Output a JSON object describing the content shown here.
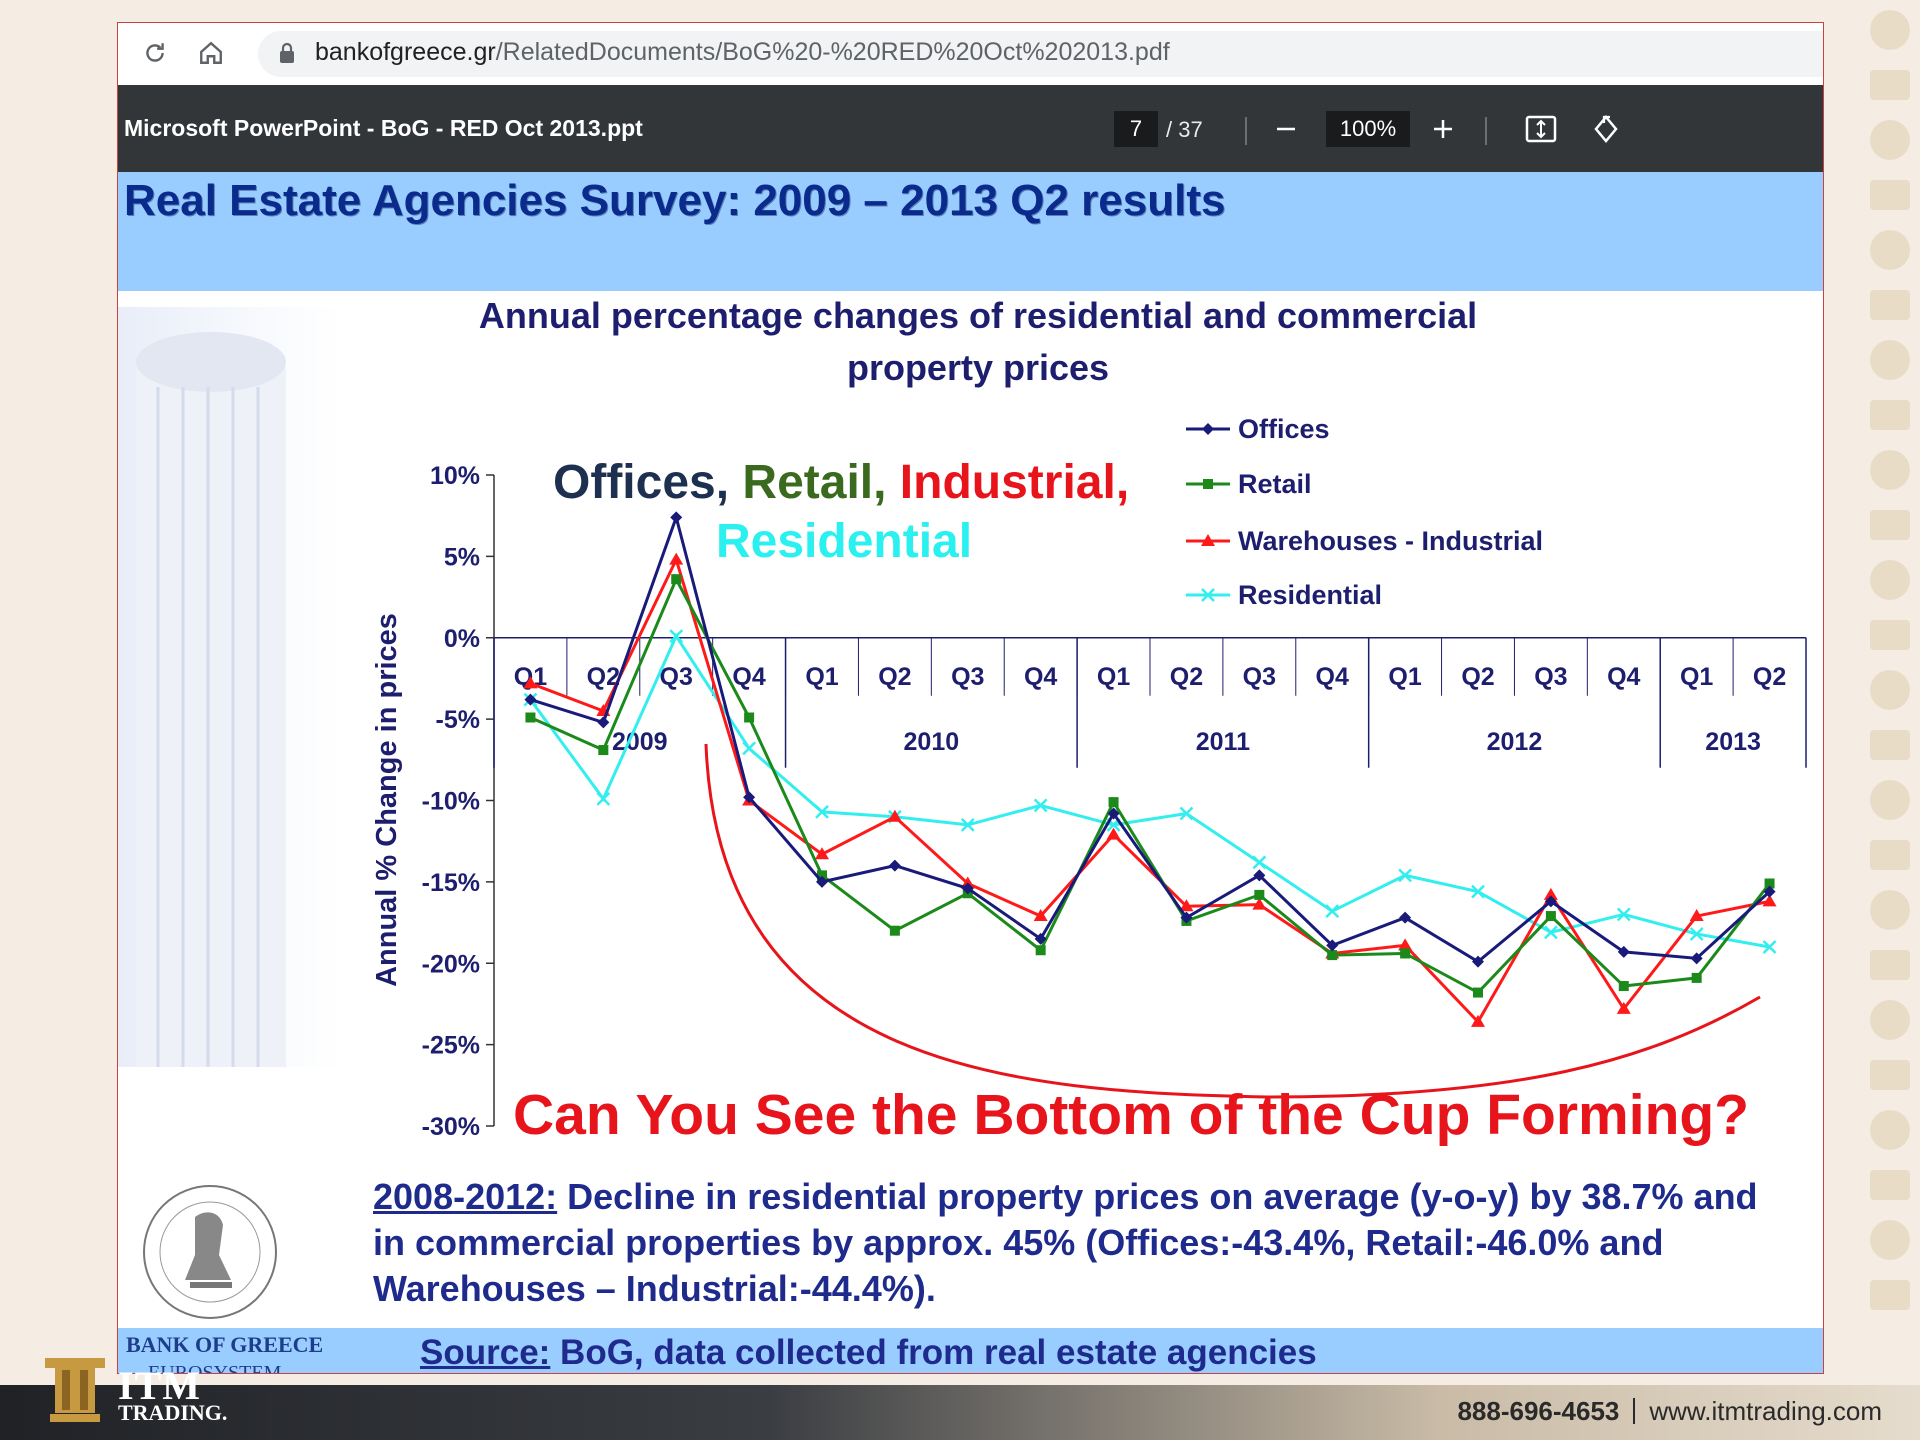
{
  "browser": {
    "url_domain": "bankofgreece.gr",
    "url_path": "/RelatedDocuments/BoG%20-%20RED%20Oct%202013.pdf"
  },
  "pdf_toolbar": {
    "doc_title": "Microsoft PowerPoint - BoG - RED Oct 2013.ppt",
    "page_current": "7",
    "page_total": "/ 37",
    "zoom": "100%"
  },
  "slide": {
    "title": "Real Estate Agencies Survey: 2009 – 2013 Q2 results",
    "note_lead": "2008-2012:",
    "note_text": " Decline in residential property prices on average (y-o-y) by 38.7% and in commercial properties by approx. 45% (Offices:-43.4%, Retail:-46.0% and Warehouses – Industrial:-44.4%).",
    "source_lead": "Source:",
    "source_text": " BoG, data collected from real estate agencies",
    "bank_name": "BANK OF GREECE",
    "bank_sub": "EUROSYSTEM"
  },
  "overlay": {
    "offices": "Offices",
    "retail": "Retail",
    "industrial": "Industrial,",
    "residential": "Residential",
    "comma": ", ",
    "cup_caption": "Can You See the Bottom of the Cup Forming?"
  },
  "branding": {
    "logo_text": "ITM",
    "logo_sub": "TRADING.",
    "phone": "888-696-4653",
    "website": "www.itmtrading.com"
  },
  "colors": {
    "offices": "#1a1a7a",
    "retail": "#1b8a1b",
    "industrial": "#ff1a1a",
    "residential": "#33eeee",
    "overlay_offices": "#1e3050",
    "overlay_retail": "#3a6a1e",
    "overlay_industrial": "#e8141c"
  },
  "chart_data": {
    "type": "line",
    "title": "Annual percentage changes of residential and commercial property prices",
    "ylabel": "Annual % Change in prices",
    "ylim": [
      -30,
      10
    ],
    "yticks": [
      "10%",
      "5%",
      "0%",
      "-5%",
      "-10%",
      "-15%",
      "-20%",
      "-25%",
      "-30%"
    ],
    "quarters": [
      "Q1",
      "Q2",
      "Q3",
      "Q4",
      "Q1",
      "Q2",
      "Q3",
      "Q4",
      "Q1",
      "Q2",
      "Q3",
      "Q4",
      "Q1",
      "Q2",
      "Q3",
      "Q4",
      "Q1",
      "Q2"
    ],
    "years": [
      {
        "label": "2009",
        "span": 4
      },
      {
        "label": "2010",
        "span": 4
      },
      {
        "label": "2011",
        "span": 4
      },
      {
        "label": "2012",
        "span": 4
      },
      {
        "label": "2013",
        "span": 2
      }
    ],
    "legend_position": "top-right",
    "series": [
      {
        "name": "Offices",
        "marker": "diamond",
        "values": [
          -3.8,
          -5.2,
          7.4,
          -9.8,
          -15.0,
          -14.0,
          -15.4,
          -18.5,
          -10.8,
          -17.2,
          -14.6,
          -18.9,
          -17.2,
          -19.9,
          -16.2,
          -19.3,
          -19.7,
          -15.6
        ]
      },
      {
        "name": "Retail",
        "marker": "square",
        "values": [
          -4.9,
          -6.9,
          3.6,
          -4.9,
          -14.6,
          -18.0,
          -15.7,
          -19.2,
          -10.1,
          -17.4,
          -15.8,
          -19.5,
          -19.4,
          -21.8,
          -17.1,
          -21.4,
          -20.9,
          -15.1
        ]
      },
      {
        "name": "Warehouses - Industrial",
        "marker": "triangle",
        "values": [
          -2.8,
          -4.5,
          4.8,
          -10.0,
          -13.3,
          -11.0,
          -15.1,
          -17.1,
          -12.1,
          -16.5,
          -16.4,
          -19.4,
          -18.9,
          -23.6,
          -15.8,
          -22.8,
          -17.1,
          -16.2
        ]
      },
      {
        "name": "Residential",
        "marker": "x",
        "values": [
          -3.8,
          -9.9,
          0.1,
          -6.8,
          -10.7,
          -11.0,
          -11.5,
          -10.3,
          -11.5,
          -10.8,
          -13.8,
          -16.8,
          -14.6,
          -15.6,
          -18.1,
          -17.0,
          -18.2,
          -19.0
        ]
      }
    ]
  }
}
